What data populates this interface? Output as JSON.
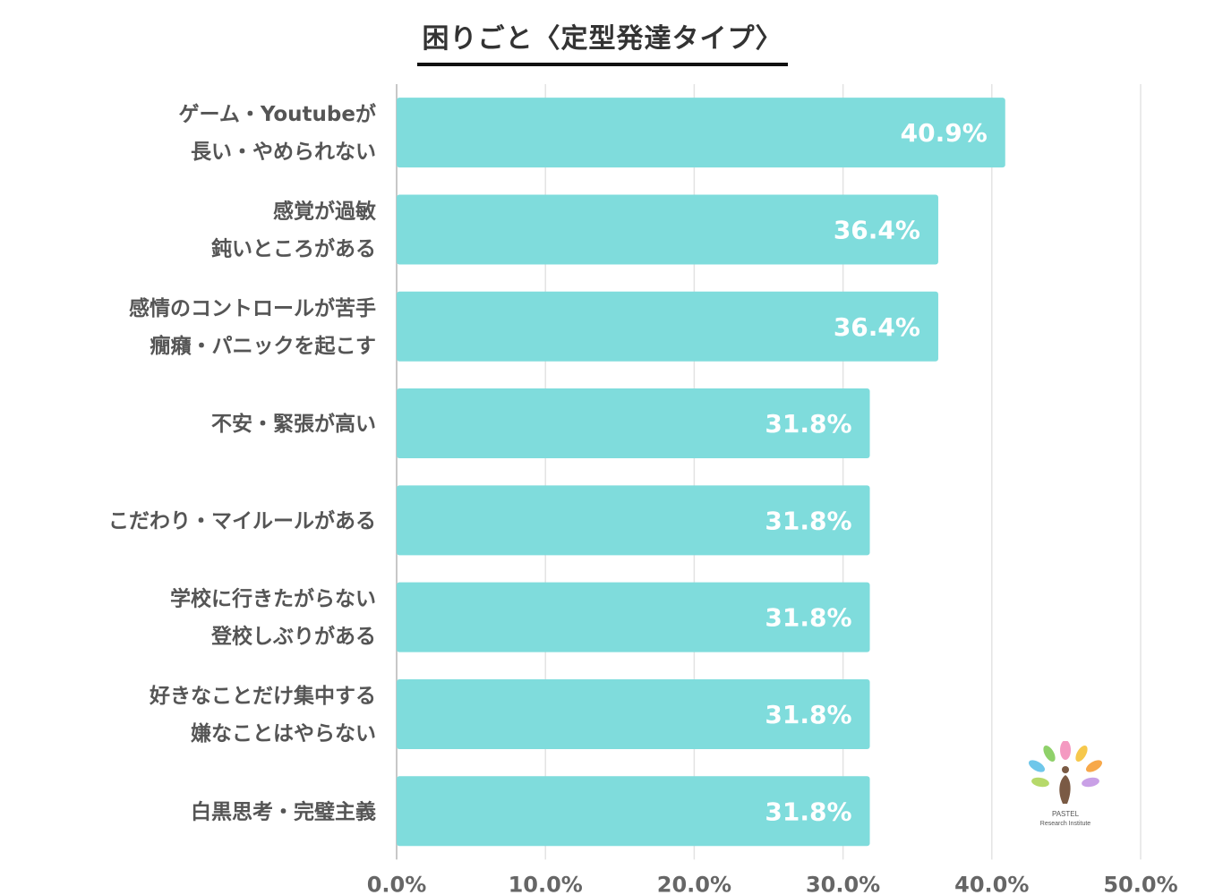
{
  "chart_data": {
    "type": "bar",
    "orientation": "horizontal",
    "title": "困りごと〈定型発達タイプ〉",
    "categories": [
      [
        "ゲーム・Youtubeが",
        "長い・やめられない"
      ],
      [
        "感覚が過敏",
        "鈍いところがある"
      ],
      [
        "感情のコントロールが苦手",
        "癇癪・パニックを起こす"
      ],
      [
        "不安・緊張が高い"
      ],
      [
        "こだわり・マイルールがある"
      ],
      [
        "学校に行きたがらない",
        "登校しぶりがある"
      ],
      [
        "好きなことだけ集中する",
        "嫌なことはやらない"
      ],
      [
        "白黒思考・完璧主義"
      ]
    ],
    "values": [
      40.9,
      36.4,
      36.4,
      31.8,
      31.8,
      31.8,
      31.8,
      31.8
    ],
    "value_labels": [
      "40.9%",
      "36.4%",
      "36.4%",
      "31.8%",
      "31.8%",
      "31.8%",
      "31.8%",
      "31.8%"
    ],
    "xlim": [
      0,
      50
    ],
    "xticks": [
      0,
      10,
      20,
      30,
      40,
      50
    ],
    "xtick_labels": [
      "0.0%",
      "10.0%",
      "20.0%",
      "30.0%",
      "40.0%",
      "50.0%"
    ],
    "grid": true,
    "bar_color": "#7fdcdc"
  },
  "logo": {
    "name": "PASTEL",
    "subtitle": "Research Institute"
  }
}
